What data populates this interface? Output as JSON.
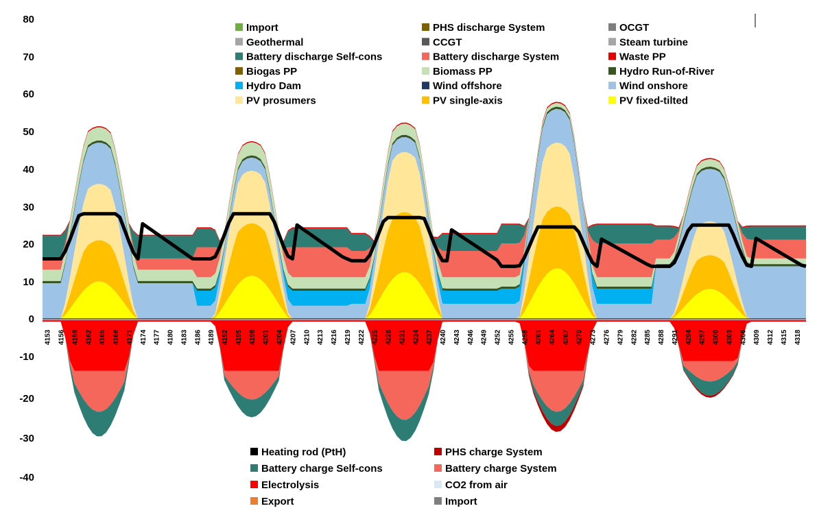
{
  "chart_data": {
    "type": "area",
    "title": "",
    "xlabel": "",
    "ylabel": "",
    "ylim": [
      -40,
      80
    ],
    "yticks": [
      -40,
      -30,
      -20,
      -10,
      0,
      10,
      20,
      30,
      40,
      50,
      60,
      70,
      80
    ],
    "x_range": [
      4152,
      4320
    ],
    "x_tick_labels": [
      "4153",
      "4156",
      "4159",
      "4162",
      "4165",
      "4168",
      "4171",
      "4174",
      "4177",
      "4180",
      "4183",
      "4186",
      "4189",
      "4192",
      "4195",
      "4198",
      "4201",
      "4204",
      "4207",
      "4210",
      "4213",
      "4216",
      "4219",
      "4222",
      "4225",
      "4228",
      "4231",
      "4234",
      "4237",
      "4240",
      "4243",
      "4246",
      "4249",
      "4252",
      "4255",
      "4258",
      "4261",
      "4264",
      "4267",
      "4270",
      "4273",
      "4276",
      "4279",
      "4282",
      "4285",
      "4288",
      "4291",
      "4294",
      "4297",
      "4300",
      "4303",
      "4306",
      "4309",
      "4312",
      "4315",
      "4318"
    ],
    "legend_positive": [
      {
        "name": "Import",
        "color": "#70ad47"
      },
      {
        "name": "PHS discharge System",
        "color": "#7f6000"
      },
      {
        "name": "OCGT",
        "color": "#7f7f7f"
      },
      {
        "name": "Geothermal",
        "color": "#a5a5a5"
      },
      {
        "name": "CCGT",
        "color": "#595959"
      },
      {
        "name": "Steam turbine",
        "color": "#a6a6a6"
      },
      {
        "name": "Battery discharge Self-cons",
        "color": "#2e7d74"
      },
      {
        "name": "Battery discharge System",
        "color": "#f4675a"
      },
      {
        "name": "Waste PP",
        "color": "#e60000"
      },
      {
        "name": "Biogas PP",
        "color": "#7f6000"
      },
      {
        "name": "Biomass PP",
        "color": "#c5e0b4"
      },
      {
        "name": "Hydro Run-of-River",
        "color": "#375623"
      },
      {
        "name": "Hydro Dam",
        "color": "#00b0f0"
      },
      {
        "name": "Wind offshore",
        "color": "#1f3864"
      },
      {
        "name": "Wind onshore",
        "color": "#9dc3e6"
      },
      {
        "name": "PV prosumers",
        "color": "#ffe699"
      },
      {
        "name": "PV single-axis",
        "color": "#ffc000"
      },
      {
        "name": "PV fixed-tilted",
        "color": "#ffff00"
      }
    ],
    "legend_negative": [
      {
        "name": "Heating rod (PtH)",
        "color": "#000000"
      },
      {
        "name": "PHS charge System",
        "color": "#c00000"
      },
      {
        "name": "Battery charge Self-cons",
        "color": "#2e7d74"
      },
      {
        "name": "Battery charge System",
        "color": "#f4675a"
      },
      {
        "name": "Electrolysis",
        "color": "#ff0000"
      },
      {
        "name": "CO2 from air",
        "color": "#dae8f5"
      },
      {
        "name": "Export",
        "color": "#ed7d31"
      },
      {
        "name": "Import",
        "color": "#7f7f7f"
      }
    ],
    "days": [
      {
        "night_left": {
          "wind": 9.5,
          "hydro": 0,
          "biomass": 3,
          "battery_sys": 3,
          "battery_self": 6
        },
        "pv_fixed": 10,
        "pv_single": 11,
        "pv_pros": 15,
        "wind_day": 11,
        "biomass_day": 3.5,
        "charge_elec": 12.5,
        "charge_sys": 10,
        "charge_self": 7,
        "charge_phs": 0,
        "demand_night": 16,
        "demand_day": 28,
        "demand_eve": 25.5
      },
      {
        "night_left": {
          "wind": 3.5,
          "hydro": 4,
          "biomass": 3,
          "battery_sys": 8,
          "battery_self": 5
        },
        "pv_fixed": 11.5,
        "pv_single": 14,
        "pv_pros": 14,
        "wind_day": 3.5,
        "biomass_day": 3.5,
        "charge_elec": 12.5,
        "charge_sys": 7,
        "charge_self": 5,
        "charge_phs": 0,
        "demand_night": 16,
        "demand_day": 28,
        "demand_eve": 25.5
      },
      {
        "night_left": {
          "wind": 4,
          "hydro": 3.5,
          "biomass": 3,
          "battery_sys": 7,
          "battery_self": 4.5
        },
        "pv_fixed": 12.5,
        "pv_single": 16,
        "pv_pros": 16,
        "wind_day": 4,
        "biomass_day": 3,
        "charge_elec": 12.5,
        "charge_sys": 12,
        "charge_self": 6,
        "charge_phs": 0,
        "demand_night": 15.5,
        "demand_day": 27,
        "demand_eve": 24.5
      },
      {
        "night_left": {
          "wind": 4,
          "hydro": 4,
          "biomass": 2.5,
          "battery_sys": 9,
          "battery_self": 5
        },
        "pv_fixed": 13.5,
        "pv_single": 16.5,
        "pv_pros": 17,
        "wind_day": 9,
        "biomass_day": 1,
        "charge_elec": 12.5,
        "charge_sys": 10,
        "charge_self": 4,
        "charge_phs": 1.5,
        "demand_night": 14,
        "demand_day": 24.5,
        "demand_eve": 21.5
      },
      {
        "night_left": {
          "wind": 14,
          "hydro": 0,
          "biomass": 1.5,
          "battery_sys": 5,
          "battery_self": 3.5
        },
        "pv_fixed": 8,
        "pv_single": 9,
        "pv_pros": 9,
        "wind_day": 14,
        "biomass_day": 2,
        "charge_elec": 10,
        "charge_sys": 5,
        "charge_self": 4,
        "charge_phs": 0.5,
        "demand_night": 14,
        "demand_day": 25,
        "demand_eve": 22
      }
    ]
  },
  "y_tick_labels": [
    "80",
    "70",
    "60",
    "50",
    "40",
    "30",
    "20",
    "10",
    "0",
    "-10",
    "-20",
    "-30",
    "-40"
  ]
}
